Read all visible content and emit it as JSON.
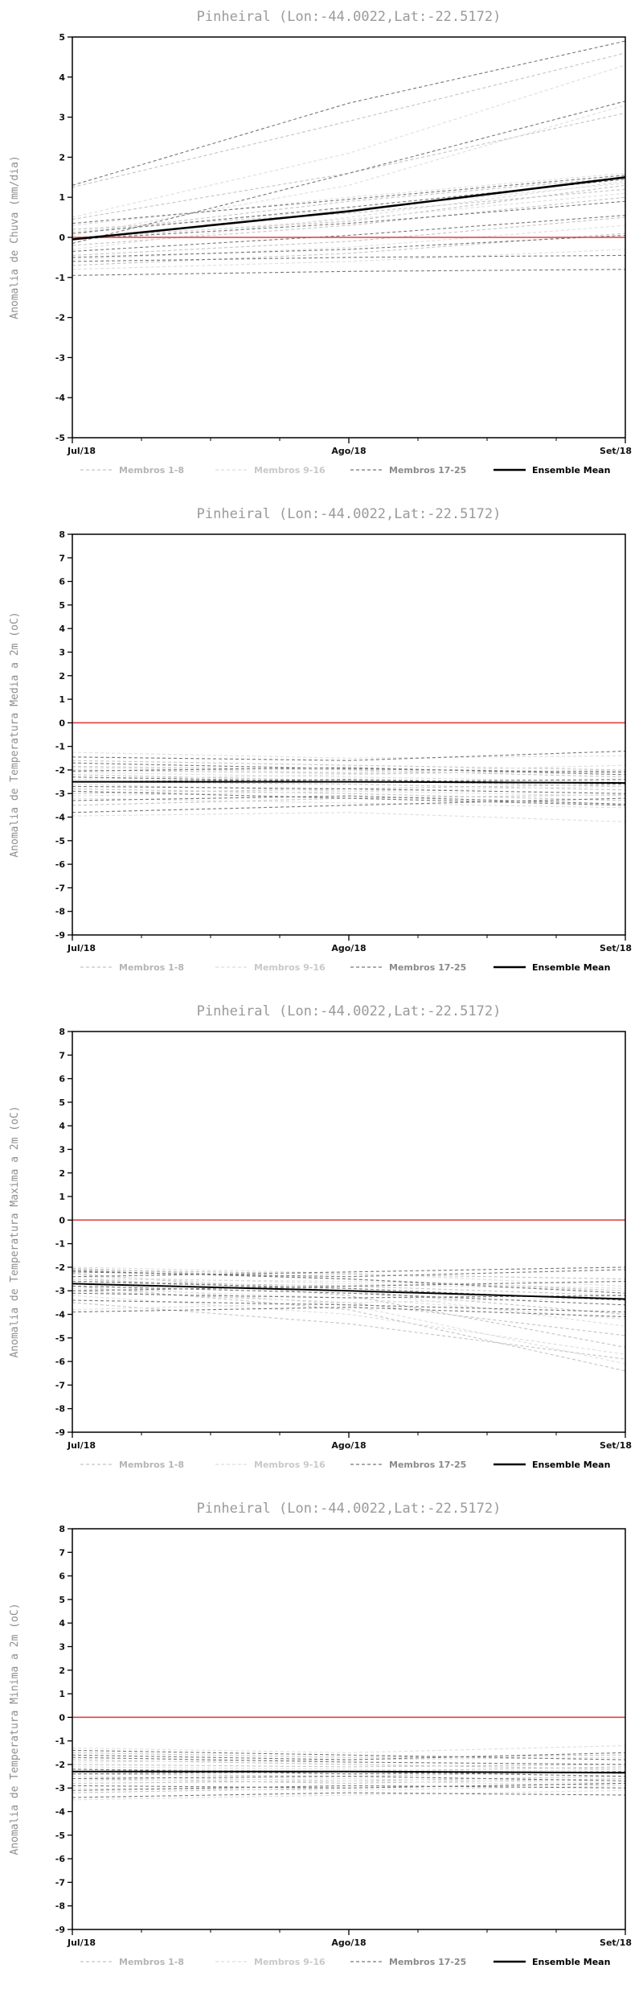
{
  "page": {
    "background": "#ffffff"
  },
  "colors": {
    "zero_line": "#e04040",
    "mean_line": "#000000",
    "axis": "#000000",
    "title_gray": "#9a9a9a",
    "group1_gray": "#c4c4c4",
    "group2_gray": "#dedede",
    "group3_gray": "#787878"
  },
  "legend": {
    "items": [
      {
        "label": "Membros 1-8",
        "color": "#c4c4c4",
        "text_color": "#b5b5b5",
        "dashed": true
      },
      {
        "label": "Membros 9-16",
        "color": "#dedede",
        "text_color": "#c9c9c9",
        "dashed": true
      },
      {
        "label": "Membros 17-25",
        "color": "#787878",
        "text_color": "#8a8a8a",
        "dashed": true
      },
      {
        "label": "Ensemble Mean",
        "color": "#000000",
        "text_color": "#000000",
        "dashed": false
      }
    ]
  },
  "chart_data": [
    {
      "type": "line",
      "title": "Pinheiral (Lon:-44.0022,Lat:-22.5172)",
      "ylabel": "Anomalia de Chuva (mm/dia)",
      "x_labels": [
        "Jul/18",
        "Ago/18",
        "Set/18"
      ],
      "ylim": [
        -5,
        5
      ],
      "ytick_step": 1,
      "zero_line": 0,
      "ensemble_mean": [
        -0.05,
        0.65,
        1.5
      ],
      "groups": [
        {
          "name": "Membros 1-8",
          "color": "#c4c4c4",
          "members": [
            [
              1.25,
              2.9,
              4.6
            ],
            [
              0.45,
              1.6,
              3.1
            ],
            [
              0.1,
              0.9,
              1.5
            ],
            [
              -0.2,
              0.3,
              1.0
            ],
            [
              0.0,
              0.4,
              1.3
            ],
            [
              -0.45,
              -0.1,
              0.5
            ],
            [
              -0.7,
              -0.4,
              0.1
            ],
            [
              0.2,
              0.6,
              1.2
            ]
          ]
        },
        {
          "name": "Membros 9-16",
          "color": "#dedede",
          "members": [
            [
              0.5,
              2.1,
              4.3
            ],
            [
              0.05,
              1.3,
              3.3
            ],
            [
              -0.3,
              0.5,
              1.4
            ],
            [
              0.15,
              0.7,
              1.35
            ],
            [
              -0.55,
              -0.25,
              0.3
            ],
            [
              -0.05,
              0.45,
              1.1
            ],
            [
              -0.8,
              -0.6,
              -0.3
            ],
            [
              0.3,
              1.0,
              1.6
            ]
          ]
        },
        {
          "name": "Membros 17-25",
          "color": "#787878",
          "members": [
            [
              1.3,
              3.35,
              4.9
            ],
            [
              -0.15,
              1.6,
              3.4
            ],
            [
              0.35,
              0.95,
              1.55
            ],
            [
              -0.6,
              -0.5,
              -0.45
            ],
            [
              -0.95,
              -0.85,
              -0.8
            ],
            [
              -0.05,
              0.35,
              0.9
            ],
            [
              -0.35,
              0.05,
              0.55
            ],
            [
              0.1,
              0.75,
              1.45
            ],
            [
              -0.5,
              -0.3,
              0.05
            ]
          ]
        }
      ]
    },
    {
      "type": "line",
      "title": "Pinheiral (Lon:-44.0022,Lat:-22.5172)",
      "ylabel": "Anomalia de Temperatura Media a 2m (oC)",
      "x_labels": [
        "Jul/18",
        "Ago/18",
        "Set/18"
      ],
      "ylim": [
        -9,
        8
      ],
      "ytick_step": 1,
      "zero_line": 0,
      "ensemble_mean": [
        -2.5,
        -2.5,
        -2.55
      ],
      "groups": [
        {
          "name": "Membros 1-8",
          "color": "#c4c4c4",
          "members": [
            [
              -1.6,
              -1.8,
              -2.0
            ],
            [
              -2.0,
              -2.15,
              -2.05
            ],
            [
              -2.5,
              -2.6,
              -2.85
            ],
            [
              -3.0,
              -2.8,
              -2.6
            ],
            [
              -3.5,
              -3.2,
              -3.05
            ],
            [
              -2.2,
              -2.45,
              -2.7
            ],
            [
              -1.85,
              -2.0,
              -2.3
            ],
            [
              -2.8,
              -3.0,
              -3.3
            ]
          ]
        },
        {
          "name": "Membros 9-16",
          "color": "#dedede",
          "members": [
            [
              -1.25,
              -1.5,
              -1.4
            ],
            [
              -2.1,
              -2.3,
              -2.5
            ],
            [
              -2.6,
              -2.9,
              -3.1
            ],
            [
              -3.2,
              -3.4,
              -3.6
            ],
            [
              -3.95,
              -3.8,
              -4.2
            ],
            [
              -2.4,
              -2.2,
              -2.0
            ],
            [
              -1.9,
              -2.1,
              -1.8
            ],
            [
              -3.1,
              -2.9,
              -2.7
            ]
          ]
        },
        {
          "name": "Membros 17-25",
          "color": "#787878",
          "members": [
            [
              -1.45,
              -1.6,
              -1.2
            ],
            [
              -2.3,
              -2.5,
              -2.4
            ],
            [
              -2.7,
              -2.8,
              -3.0
            ],
            [
              -3.3,
              -3.1,
              -3.45
            ],
            [
              -3.8,
              -3.5,
              -3.2
            ],
            [
              -2.05,
              -1.9,
              -2.2
            ],
            [
              -2.9,
              -3.2,
              -3.5
            ],
            [
              -1.7,
              -1.95,
              -2.1
            ],
            [
              -2.5,
              -2.4,
              -2.6
            ]
          ]
        }
      ]
    },
    {
      "type": "line",
      "title": "Pinheiral (Lon:-44.0022,Lat:-22.5172)",
      "ylabel": "Anomalia de Temperatura Maxima a 2m (oC)",
      "x_labels": [
        "Jul/18",
        "Ago/18",
        "Set/18"
      ],
      "ylim": [
        -9,
        8
      ],
      "ytick_step": 1,
      "zero_line": 0,
      "ensemble_mean": [
        -2.7,
        -3.0,
        -3.35
      ],
      "groups": [
        {
          "name": "Membros 1-8",
          "color": "#c4c4c4",
          "members": [
            [
              -2.05,
              -2.5,
              -3.0
            ],
            [
              -2.5,
              -3.0,
              -4.0
            ],
            [
              -3.0,
              -3.5,
              -4.9
            ],
            [
              -2.25,
              -3.2,
              -5.4
            ],
            [
              -3.5,
              -4.4,
              -5.9
            ],
            [
              -2.8,
              -3.8,
              -6.4
            ],
            [
              -2.1,
              -2.3,
              -2.5
            ],
            [
              -2.6,
              -2.8,
              -3.2
            ]
          ]
        },
        {
          "name": "Membros 9-16",
          "color": "#dedede",
          "members": [
            [
              -2.3,
              -3.0,
              -4.5
            ],
            [
              -3.2,
              -4.0,
              -5.7
            ],
            [
              -2.7,
              -3.6,
              -6.1
            ],
            [
              -2.4,
              -2.7,
              -3.0
            ],
            [
              -3.8,
              -3.5,
              -3.3
            ],
            [
              -2.0,
              -2.25,
              -2.8
            ],
            [
              -2.9,
              -3.3,
              -4.2
            ],
            [
              -2.5,
              -2.6,
              -2.9
            ]
          ]
        },
        {
          "name": "Membros 17-25",
          "color": "#787878",
          "members": [
            [
              -2.2,
              -2.4,
              -2.1
            ],
            [
              -2.6,
              -2.9,
              -3.4
            ],
            [
              -3.0,
              -2.8,
              -2.6
            ],
            [
              -3.4,
              -3.6,
              -3.9
            ],
            [
              -3.9,
              -3.7,
              -4.1
            ],
            [
              -2.15,
              -2.5,
              -3.1
            ],
            [
              -2.8,
              -3.1,
              -3.6
            ],
            [
              -2.4,
              -2.2,
              -2.0
            ],
            [
              -3.1,
              -3.3,
              -3.2
            ]
          ]
        }
      ]
    },
    {
      "type": "line",
      "title": "Pinheiral (Lon:-44.0022,Lat:-22.5172)",
      "ylabel": "Anomalia de Temperatura Minima a 2m (oC)",
      "x_labels": [
        "Jul/18",
        "Ago/18",
        "Set/18"
      ],
      "ylim": [
        -9,
        8
      ],
      "ytick_step": 1,
      "zero_line": 0,
      "ensemble_mean": [
        -2.3,
        -2.3,
        -2.35
      ],
      "groups": [
        {
          "name": "Membros 1-8",
          "color": "#c4c4c4",
          "members": [
            [
              -1.5,
              -1.7,
              -1.6
            ],
            [
              -2.0,
              -2.1,
              -2.0
            ],
            [
              -2.4,
              -2.5,
              -2.3
            ],
            [
              -2.8,
              -2.7,
              -2.5
            ],
            [
              -3.2,
              -3.0,
              -2.8
            ],
            [
              -1.8,
              -2.0,
              -2.2
            ],
            [
              -2.2,
              -2.3,
              -2.1
            ],
            [
              -2.6,
              -2.8,
              -2.6
            ]
          ]
        },
        {
          "name": "Membros 9-16",
          "color": "#dedede",
          "members": [
            [
              -1.3,
              -1.5,
              -1.2
            ],
            [
              -2.1,
              -2.2,
              -2.4
            ],
            [
              -2.5,
              -2.7,
              -2.9
            ],
            [
              -3.0,
              -3.1,
              -2.9
            ],
            [
              -3.5,
              -3.3,
              -3.1
            ],
            [
              -1.9,
              -1.8,
              -1.7
            ],
            [
              -2.3,
              -2.4,
              -2.2
            ],
            [
              -2.7,
              -2.6,
              -2.8
            ]
          ]
        },
        {
          "name": "Membros 17-25",
          "color": "#787878",
          "members": [
            [
              -1.6,
              -1.8,
              -1.5
            ],
            [
              -2.2,
              -2.4,
              -2.3
            ],
            [
              -2.6,
              -2.5,
              -2.7
            ],
            [
              -3.1,
              -2.9,
              -3.0
            ],
            [
              -3.4,
              -3.2,
              -3.3
            ],
            [
              -1.7,
              -1.9,
              -2.0
            ],
            [
              -2.9,
              -3.0,
              -2.8
            ],
            [
              -1.4,
              -1.6,
              -1.8
            ],
            [
              -2.4,
              -2.3,
              -2.5
            ]
          ]
        }
      ]
    }
  ]
}
